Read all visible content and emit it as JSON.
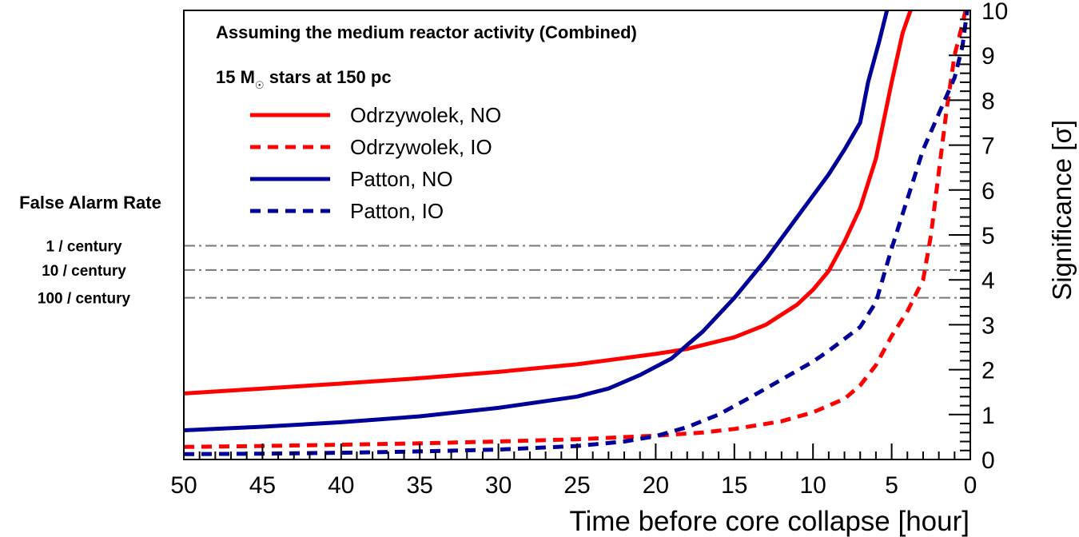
{
  "chart_data": {
    "type": "line",
    "title": "Assuming the medium reactor activity (Combined)",
    "subtitle": {
      "prefix": "15 M",
      "sub": "☉",
      "suffix": " stars at 150 pc"
    },
    "xlabel": "Time before core collapse [hour]",
    "ylabel": "Significance [σ]",
    "xlim": [
      50,
      0
    ],
    "ylim": [
      0,
      10
    ],
    "xticks": [
      50,
      45,
      40,
      35,
      30,
      25,
      20,
      15,
      10,
      5,
      0
    ],
    "yticks": [
      0,
      1,
      2,
      3,
      4,
      5,
      6,
      7,
      8,
      9,
      10
    ],
    "legend_position": "top-left",
    "series": [
      {
        "name": "Odrzywolek, NO",
        "color": "#ff0000",
        "dash": "solid",
        "points": [
          [
            50,
            1.47
          ],
          [
            45,
            1.58
          ],
          [
            40,
            1.69
          ],
          [
            35,
            1.81
          ],
          [
            30,
            1.95
          ],
          [
            25,
            2.12
          ],
          [
            20,
            2.35
          ],
          [
            18,
            2.46
          ],
          [
            15,
            2.72
          ],
          [
            13,
            3.0
          ],
          [
            11,
            3.45
          ],
          [
            10,
            3.78
          ],
          [
            9,
            4.2
          ],
          [
            8,
            4.85
          ],
          [
            7,
            5.6
          ],
          [
            6,
            6.7
          ],
          [
            5,
            8.4
          ],
          [
            4.3,
            9.5
          ],
          [
            3.8,
            10.0
          ]
        ]
      },
      {
        "name": "Odrzywolek, IO",
        "color": "#ff0000",
        "dash": "dashed",
        "points": [
          [
            50,
            0.28
          ],
          [
            45,
            0.3
          ],
          [
            40,
            0.33
          ],
          [
            35,
            0.36
          ],
          [
            30,
            0.4
          ],
          [
            25,
            0.45
          ],
          [
            20,
            0.53
          ],
          [
            17,
            0.6
          ],
          [
            15,
            0.68
          ],
          [
            12,
            0.85
          ],
          [
            10,
            1.05
          ],
          [
            8,
            1.35
          ],
          [
            7,
            1.65
          ],
          [
            6,
            2.1
          ],
          [
            5,
            2.75
          ],
          [
            4,
            3.3
          ],
          [
            3,
            4.0
          ],
          [
            2.5,
            5.0
          ],
          [
            2,
            6.4
          ],
          [
            1.5,
            7.8
          ],
          [
            1,
            9.0
          ],
          [
            0.5,
            9.7
          ],
          [
            0.3,
            10.0
          ]
        ]
      },
      {
        "name": "Patton, NO",
        "color": "#000099",
        "dash": "solid",
        "points": [
          [
            50,
            0.65
          ],
          [
            45,
            0.73
          ],
          [
            40,
            0.83
          ],
          [
            35,
            0.96
          ],
          [
            30,
            1.15
          ],
          [
            25,
            1.4
          ],
          [
            23,
            1.58
          ],
          [
            21,
            1.88
          ],
          [
            19,
            2.25
          ],
          [
            17,
            2.85
          ],
          [
            15,
            3.6
          ],
          [
            13,
            4.45
          ],
          [
            11,
            5.4
          ],
          [
            9,
            6.35
          ],
          [
            8,
            6.9
          ],
          [
            7,
            7.5
          ],
          [
            6.5,
            8.4
          ],
          [
            5.8,
            9.3
          ],
          [
            5.3,
            10.0
          ]
        ]
      },
      {
        "name": "Patton, IO",
        "color": "#000099",
        "dash": "dashed",
        "points": [
          [
            50,
            0.12
          ],
          [
            45,
            0.13
          ],
          [
            40,
            0.15
          ],
          [
            35,
            0.18
          ],
          [
            30,
            0.22
          ],
          [
            25,
            0.3
          ],
          [
            22,
            0.4
          ],
          [
            20,
            0.52
          ],
          [
            18,
            0.72
          ],
          [
            16,
            1.0
          ],
          [
            14,
            1.38
          ],
          [
            12,
            1.78
          ],
          [
            10,
            2.18
          ],
          [
            9,
            2.42
          ],
          [
            7,
            2.95
          ],
          [
            6,
            3.5
          ],
          [
            5,
            4.7
          ],
          [
            4,
            5.8
          ],
          [
            3,
            6.9
          ],
          [
            2,
            7.7
          ],
          [
            1,
            8.5
          ],
          [
            0.5,
            9.2
          ],
          [
            0.2,
            10.0
          ]
        ]
      }
    ],
    "false_alarm": {
      "title": "False Alarm Rate",
      "lines": [
        {
          "label": "1 / century",
          "value": 4.76
        },
        {
          "label": "10 / century",
          "value": 4.22
        },
        {
          "label": "100 / century",
          "value": 3.6
        }
      ]
    }
  }
}
